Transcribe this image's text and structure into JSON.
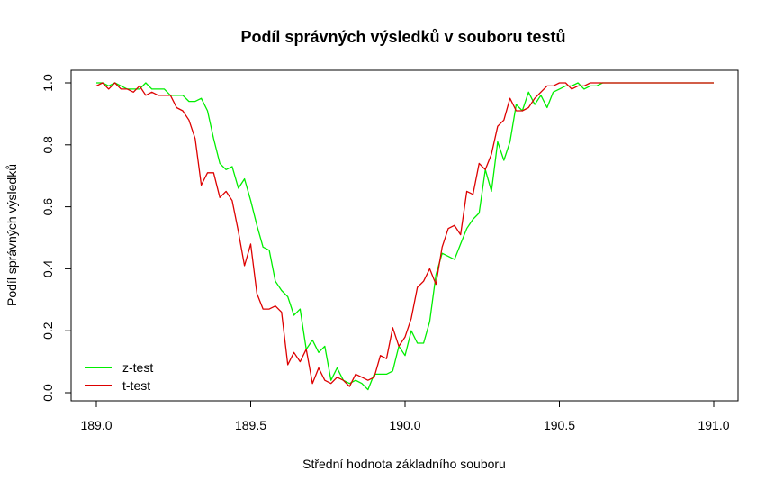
{
  "chart_data": {
    "type": "line",
    "title": "Podíl správných výsledků v souboru testů",
    "xlabel": "Střední hodnota základního souboru",
    "ylabel": "Podíl správných výsledků",
    "xlim": [
      189.0,
      191.0
    ],
    "ylim": [
      0.0,
      1.0
    ],
    "x_ticks": [
      "189.0",
      "189.5",
      "190.0",
      "190.5",
      "191.0"
    ],
    "y_ticks": [
      "0.0",
      "0.2",
      "0.4",
      "0.6",
      "0.8",
      "1.0"
    ],
    "grid": false,
    "legend_position": "bottom-left",
    "x": [
      189.0,
      189.02,
      189.04,
      189.06,
      189.08,
      189.1,
      189.12,
      189.14,
      189.16,
      189.18,
      189.2,
      189.22,
      189.24,
      189.26,
      189.28,
      189.3,
      189.32,
      189.34,
      189.36,
      189.38,
      189.4,
      189.42,
      189.44,
      189.46,
      189.48,
      189.5,
      189.52,
      189.54,
      189.56,
      189.58,
      189.6,
      189.62,
      189.64,
      189.66,
      189.68,
      189.7,
      189.72,
      189.74,
      189.76,
      189.78,
      189.8,
      189.82,
      189.84,
      189.86,
      189.88,
      189.9,
      189.92,
      189.94,
      189.96,
      189.98,
      190.0,
      190.02,
      190.04,
      190.06,
      190.08,
      190.1,
      190.12,
      190.14,
      190.16,
      190.18,
      190.2,
      190.22,
      190.24,
      190.26,
      190.28,
      190.3,
      190.32,
      190.34,
      190.36,
      190.38,
      190.4,
      190.42,
      190.44,
      190.46,
      190.48,
      190.5,
      190.52,
      190.54,
      190.56,
      190.58,
      190.6,
      190.62,
      190.64,
      190.66,
      190.68,
      190.7,
      190.72,
      190.74,
      190.76,
      190.78,
      190.8,
      190.82,
      190.84,
      190.86,
      190.88,
      190.9,
      190.92,
      190.94,
      190.96,
      190.98,
      191.0
    ],
    "series": [
      {
        "name": "z-test",
        "color": "#00ee00",
        "values": [
          1.0,
          1.0,
          0.99,
          1.0,
          0.99,
          0.98,
          0.98,
          0.98,
          1.0,
          0.98,
          0.98,
          0.98,
          0.96,
          0.96,
          0.96,
          0.94,
          0.94,
          0.95,
          0.91,
          0.82,
          0.74,
          0.72,
          0.73,
          0.66,
          0.69,
          0.62,
          0.54,
          0.47,
          0.46,
          0.36,
          0.33,
          0.31,
          0.25,
          0.27,
          0.14,
          0.17,
          0.13,
          0.15,
          0.04,
          0.08,
          0.04,
          0.03,
          0.04,
          0.03,
          0.01,
          0.06,
          0.06,
          0.06,
          0.07,
          0.15,
          0.12,
          0.2,
          0.16,
          0.16,
          0.23,
          0.38,
          0.45,
          0.44,
          0.43,
          0.48,
          0.53,
          0.56,
          0.58,
          0.72,
          0.65,
          0.81,
          0.75,
          0.81,
          0.93,
          0.91,
          0.97,
          0.93,
          0.96,
          0.92,
          0.97,
          0.98,
          0.99,
          0.99,
          1.0,
          0.98,
          0.99,
          0.99,
          1.0,
          1.0,
          1.0,
          1.0,
          1.0,
          1.0,
          1.0,
          1.0,
          1.0,
          1.0,
          1.0,
          1.0,
          1.0,
          1.0,
          1.0,
          1.0,
          1.0,
          1.0,
          1.0
        ]
      },
      {
        "name": "t-test",
        "color": "#dd0000",
        "values": [
          0.99,
          1.0,
          0.98,
          1.0,
          0.98,
          0.98,
          0.97,
          0.99,
          0.96,
          0.97,
          0.96,
          0.96,
          0.96,
          0.92,
          0.91,
          0.88,
          0.82,
          0.67,
          0.71,
          0.71,
          0.63,
          0.65,
          0.62,
          0.52,
          0.41,
          0.48,
          0.32,
          0.27,
          0.27,
          0.28,
          0.26,
          0.09,
          0.13,
          0.1,
          0.14,
          0.03,
          0.08,
          0.04,
          0.03,
          0.05,
          0.04,
          0.02,
          0.06,
          0.05,
          0.04,
          0.05,
          0.12,
          0.11,
          0.21,
          0.15,
          0.18,
          0.24,
          0.34,
          0.36,
          0.4,
          0.35,
          0.47,
          0.53,
          0.54,
          0.51,
          0.65,
          0.64,
          0.74,
          0.72,
          0.77,
          0.86,
          0.88,
          0.95,
          0.91,
          0.91,
          0.92,
          0.95,
          0.97,
          0.99,
          0.99,
          1.0,
          1.0,
          0.98,
          0.99,
          0.99,
          1.0,
          1.0,
          1.0,
          1.0,
          1.0,
          1.0,
          1.0,
          1.0,
          1.0,
          1.0,
          1.0,
          1.0,
          1.0,
          1.0,
          1.0,
          1.0,
          1.0,
          1.0,
          1.0,
          1.0,
          1.0
        ]
      }
    ]
  }
}
